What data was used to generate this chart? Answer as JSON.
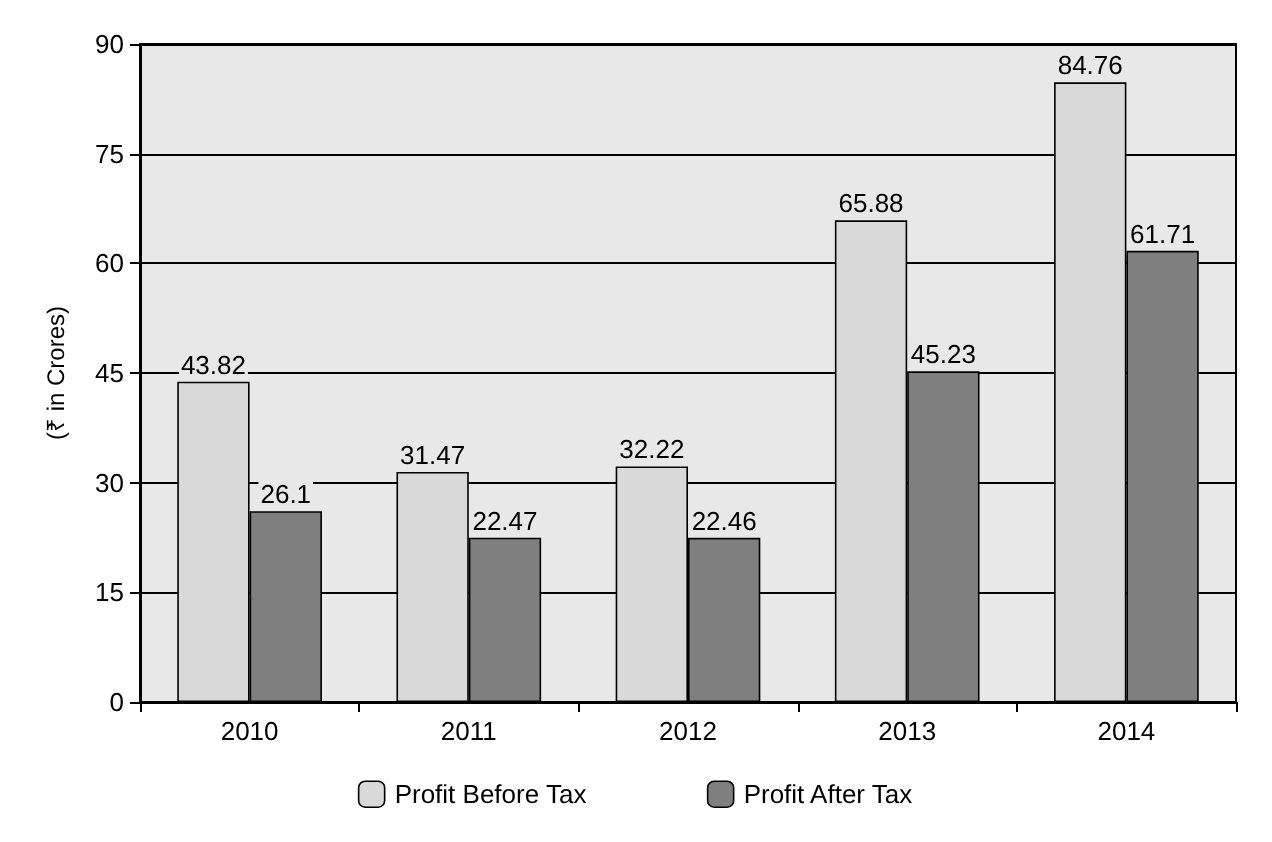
{
  "chart_data": {
    "type": "bar",
    "ylabel": "(₹ in Crores)",
    "categories": [
      "2010",
      "2011",
      "2012",
      "2013",
      "2014"
    ],
    "series": [
      {
        "name": "Profit Before Tax",
        "color": "#d9d9d9",
        "values": [
          43.82,
          31.47,
          32.22,
          65.88,
          84.76
        ]
      },
      {
        "name": "Profit After Tax",
        "color": "#7f7f7f",
        "values": [
          26.1,
          22.47,
          22.46,
          45.23,
          61.71
        ]
      }
    ],
    "ylim": [
      0,
      90
    ],
    "yticks": [
      0,
      15,
      30,
      45,
      60,
      75,
      90
    ],
    "grid": "y",
    "legend": "bottom",
    "data_labels": true
  }
}
